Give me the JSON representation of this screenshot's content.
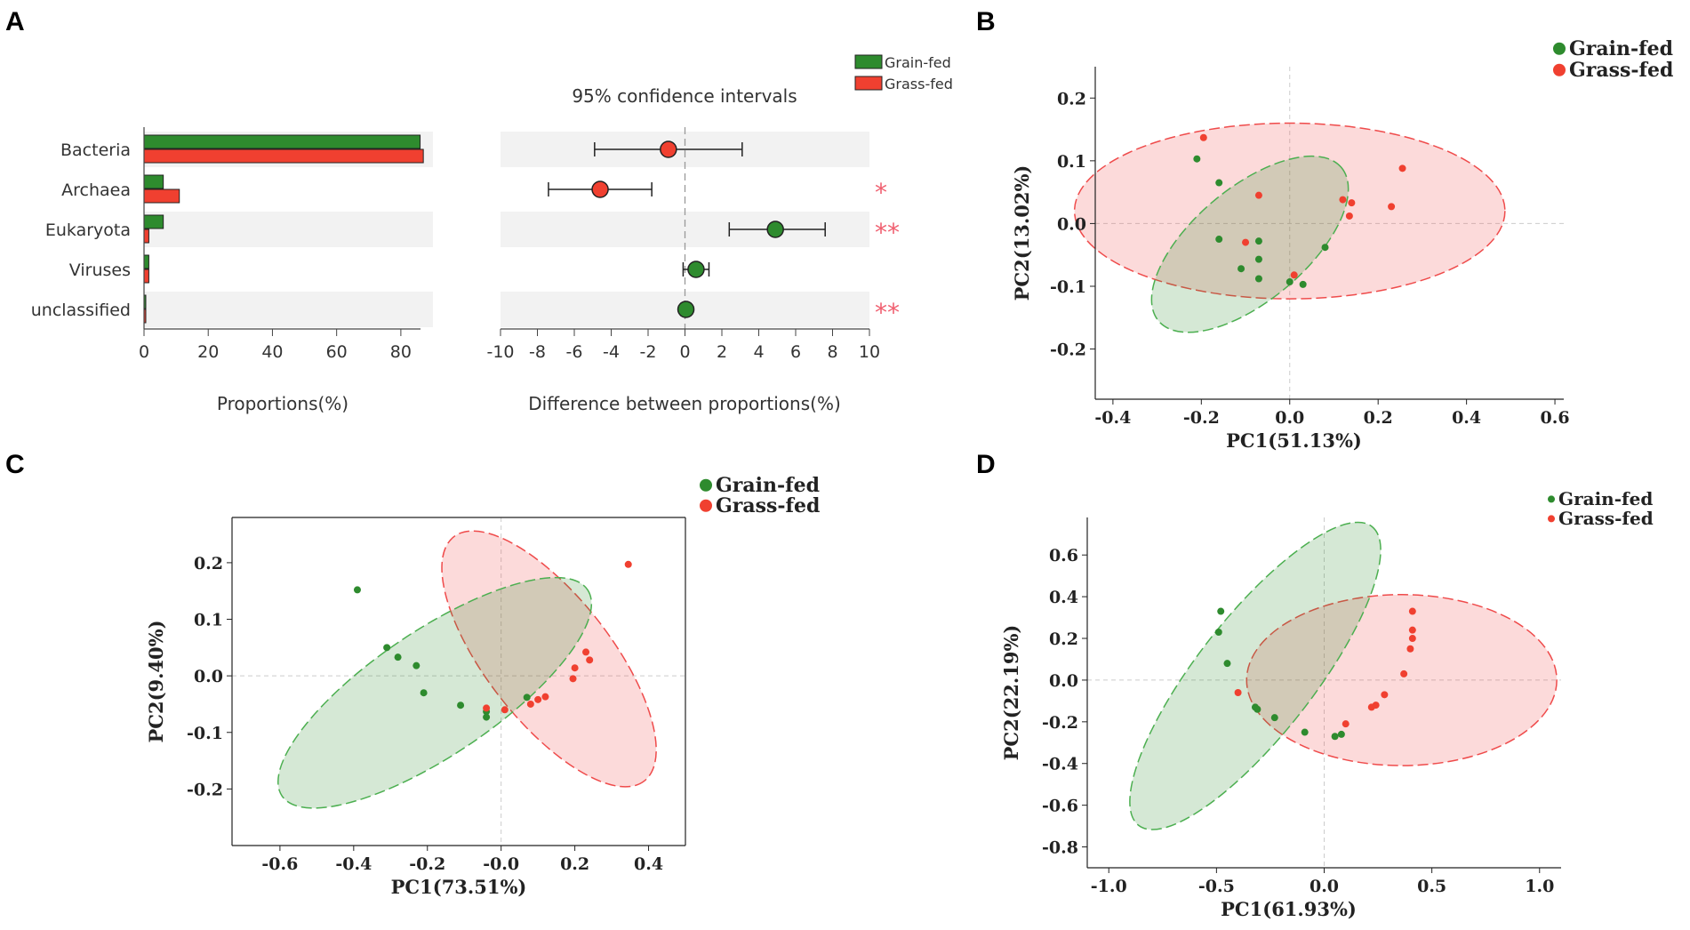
{
  "chart_data": [
    {
      "panel": "A",
      "type": "bar",
      "categories": [
        "Bacteria",
        "Archaea",
        "Eukaryota",
        "Viruses",
        "unclassified"
      ],
      "series": [
        {
          "name": "Grain-fed",
          "color": "#2e8b2e",
          "values": [
            86,
            6,
            6,
            1.5,
            0.3
          ]
        },
        {
          "name": "Grass-fed",
          "color": "#f04030",
          "values": [
            87,
            11,
            1.5,
            1.5,
            0.3
          ]
        }
      ],
      "xticks": [
        "0",
        "20",
        "40",
        "60",
        "80"
      ],
      "xlim": [
        0,
        90
      ],
      "xlabel": "Proportions(%)",
      "ci_plot": {
        "title": "95% confidence intervals",
        "xlabel": "Difference between proportions(%)",
        "xticks": [
          "-10",
          "-8",
          "-6",
          "-4",
          "-2",
          "0",
          "2",
          "4",
          "6",
          "8",
          "10"
        ],
        "xlim": [
          -10,
          10
        ],
        "points": [
          {
            "category": "Bacteria",
            "diff": -0.9,
            "low": -4.9,
            "high": 3.1,
            "group": "Grass-fed",
            "sig": ""
          },
          {
            "category": "Archaea",
            "diff": -4.6,
            "low": -7.4,
            "high": -1.8,
            "group": "Grass-fed",
            "sig": "*"
          },
          {
            "category": "Eukaryota",
            "diff": 4.9,
            "low": 2.4,
            "high": 7.6,
            "group": "Grain-fed",
            "sig": "**"
          },
          {
            "category": "Viruses",
            "diff": 0.6,
            "low": -0.1,
            "high": 1.3,
            "group": "Grain-fed",
            "sig": ""
          },
          {
            "category": "unclassified",
            "diff": 0.05,
            "low": -0.2,
            "high": 0.3,
            "group": "Grain-fed",
            "sig": "**"
          }
        ]
      },
      "legend": [
        "Grain-fed",
        "Grass-fed"
      ]
    },
    {
      "panel": "B",
      "type": "scatter",
      "xlabel": "PC1(51.13%)",
      "ylabel": "PC2(13.02%)",
      "xlim": [
        -0.44,
        0.62
      ],
      "ylim": [
        -0.28,
        0.25
      ],
      "xticks": [
        -0.4,
        -0.2,
        0.0,
        0.2,
        0.4,
        0.6
      ],
      "xtick_labels": [
        "-0.4",
        "-0.2",
        "0.0",
        "0.2",
        "0.4",
        "0.6"
      ],
      "yticks": [
        -0.2,
        -0.1,
        0.0,
        0.1,
        0.2
      ],
      "ytick_labels": [
        "-0.2",
        "-0.1",
        "0.0",
        "0.1",
        "0.2"
      ],
      "legend": [
        "Grain-fed",
        "Grass-fed"
      ],
      "series": [
        {
          "name": "Grain-fed",
          "color": "#2e8b2e",
          "x": [
            -0.21,
            -0.16,
            -0.16,
            -0.11,
            -0.07,
            -0.07,
            -0.07,
            0.0,
            0.03,
            0.08
          ],
          "y": [
            0.103,
            0.065,
            -0.025,
            -0.072,
            -0.028,
            -0.057,
            -0.088,
            -0.093,
            -0.097,
            -0.038
          ],
          "ellipse": {
            "cx": -0.09,
            "cy": -0.033,
            "rx": 0.27,
            "ry": 0.09,
            "angle": -40
          }
        },
        {
          "name": "Grass-fed",
          "color": "#f04030",
          "x": [
            -0.195,
            -0.07,
            -0.1,
            0.01,
            0.12,
            0.14,
            0.135,
            0.23,
            0.255
          ],
          "y": [
            0.137,
            0.045,
            -0.03,
            -0.082,
            0.038,
            0.033,
            0.012,
            0.027,
            0.088
          ],
          "ellipse": {
            "cx": 0.0,
            "cy": 0.02,
            "rx": 0.487,
            "ry": 0.14,
            "angle": 0
          }
        }
      ]
    },
    {
      "panel": "C",
      "type": "scatter",
      "xlabel": "PC1(73.51%)",
      "ylabel": "PC2(9.40%)",
      "xlim": [
        -0.73,
        0.5
      ],
      "ylim": [
        -0.3,
        0.28
      ],
      "xticks": [
        -0.6,
        -0.4,
        -0.2,
        0.0,
        0.2,
        0.4
      ],
      "xtick_labels": [
        "-0.6",
        "-0.4",
        "-0.2",
        "-0.0",
        "0.2",
        "0.4"
      ],
      "yticks": [
        -0.2,
        -0.1,
        0.0,
        0.1,
        0.2
      ],
      "ytick_labels": [
        "-0.2",
        "-0.1",
        "0.0",
        "0.1",
        "0.2"
      ],
      "legend": [
        "Grain-fed",
        "Grass-fed"
      ],
      "series": [
        {
          "name": "Grain-fed",
          "color": "#2e8b2e",
          "x": [
            -0.39,
            -0.31,
            -0.28,
            -0.23,
            -0.21,
            -0.11,
            -0.04,
            -0.04,
            0.07
          ],
          "y": [
            0.152,
            0.05,
            0.033,
            0.018,
            -0.03,
            -0.052,
            -0.063,
            -0.073,
            -0.038
          ],
          "ellipse": {
            "cx": -0.18,
            "cy": -0.03,
            "rx": 0.5,
            "ry": 0.11,
            "angle": -34
          }
        },
        {
          "name": "Grass-fed",
          "color": "#f04030",
          "x": [
            0.345,
            0.23,
            0.24,
            0.2,
            0.195,
            0.12,
            0.1,
            0.08,
            0.01,
            -0.04
          ],
          "y": [
            0.197,
            0.042,
            0.028,
            0.014,
            -0.005,
            -0.037,
            -0.042,
            -0.05,
            -0.06,
            -0.057
          ],
          "ellipse": {
            "cx": 0.13,
            "cy": 0.03,
            "rx": 0.42,
            "ry": 0.11,
            "angle": 52
          }
        }
      ]
    },
    {
      "panel": "D",
      "type": "scatter",
      "xlabel": "PC1(61.93%)",
      "ylabel": "PC2(22.19%)",
      "xlim": [
        -1.1,
        1.1
      ],
      "ylim": [
        -0.9,
        0.78
      ],
      "xticks": [
        -1.0,
        -0.5,
        0.0,
        0.5,
        1.0
      ],
      "xtick_labels": [
        "-1.0",
        "-0.5",
        "0.0",
        "0.5",
        "1.0"
      ],
      "yticks": [
        -0.8,
        -0.6,
        -0.4,
        -0.2,
        0.0,
        0.2,
        0.4,
        0.6
      ],
      "ytick_labels": [
        "-0.8",
        "-0.6",
        "-0.4",
        "-0.2",
        "0.0",
        "0.2",
        "0.4",
        "0.6"
      ],
      "legend": [
        "Grain-fed",
        "Grass-fed"
      ],
      "series": [
        {
          "name": "Grain-fed",
          "color": "#2e8b2e",
          "x": [
            -0.48,
            -0.49,
            -0.45,
            -0.32,
            -0.31,
            -0.23,
            -0.09,
            0.05,
            0.08
          ],
          "y": [
            0.33,
            0.23,
            0.08,
            -0.13,
            -0.14,
            -0.18,
            -0.25,
            -0.27,
            -0.26
          ],
          "ellipse": {
            "cx": -0.32,
            "cy": 0.02,
            "rx": 0.88,
            "ry": 0.28,
            "angle": -52
          }
        },
        {
          "name": "Grass-fed",
          "color": "#f04030",
          "x": [
            -0.4,
            0.1,
            0.22,
            0.24,
            0.28,
            0.37,
            0.4,
            0.41,
            0.41,
            0.41
          ],
          "y": [
            -0.06,
            -0.21,
            -0.13,
            -0.12,
            -0.07,
            0.03,
            0.15,
            0.2,
            0.24,
            0.33
          ],
          "ellipse": {
            "cx": 0.36,
            "cy": 0.0,
            "rx": 0.72,
            "ry": 0.41,
            "angle": 0
          }
        }
      ]
    }
  ],
  "panels": {
    "a": "A",
    "b": "B",
    "c": "C",
    "d": "D"
  }
}
